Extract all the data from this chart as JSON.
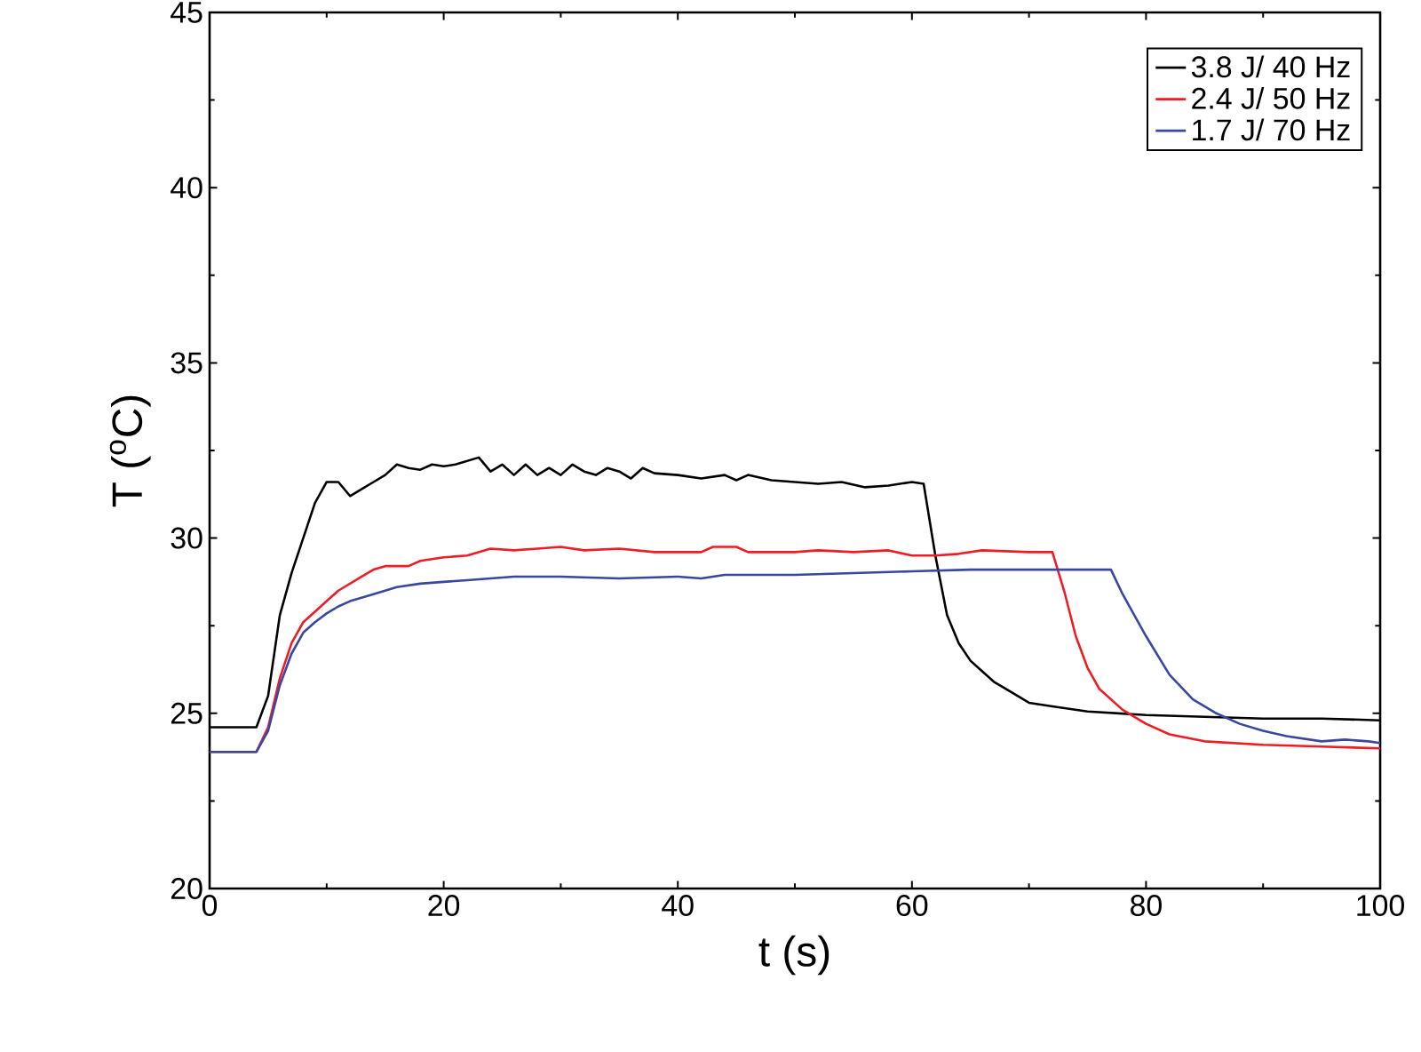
{
  "chart_data": {
    "type": "line",
    "xlabel": "t (s)",
    "ylabel": "T ($^{o}$C)",
    "xlim": [
      0,
      100
    ],
    "ylim": [
      20,
      45
    ],
    "xticks": [
      0,
      20,
      40,
      60,
      80,
      100
    ],
    "yticks": [
      20,
      25,
      30,
      35,
      40,
      45
    ],
    "legend": "top right",
    "grid": false,
    "marker": "none",
    "line_style": "solid",
    "series": [
      {
        "name": "3.8 J/ 40 Hz",
        "color": "#000000",
        "x": [
          0,
          4,
          5,
          6,
          7,
          8,
          9,
          10,
          11,
          12,
          13,
          14,
          15,
          16,
          17,
          18,
          19,
          20,
          21,
          22,
          23,
          24,
          25,
          26,
          27,
          28,
          29,
          30,
          31,
          32,
          33,
          34,
          35,
          36,
          37,
          38,
          40,
          42,
          44,
          45,
          46,
          48,
          50,
          52,
          54,
          56,
          58,
          60,
          61,
          62,
          63,
          64,
          65,
          66,
          67,
          68,
          70,
          72,
          75,
          80,
          85,
          90,
          95,
          100
        ],
        "values": [
          24.6,
          24.6,
          25.5,
          27.8,
          29,
          30,
          31,
          31.6,
          31.6,
          31.2,
          31.4,
          31.6,
          31.8,
          32.1,
          32,
          31.95,
          32.1,
          32.05,
          32.1,
          32.2,
          32.3,
          31.9,
          32.1,
          31.8,
          32.1,
          31.8,
          32,
          31.8,
          32.1,
          31.9,
          31.8,
          32,
          31.9,
          31.7,
          32,
          31.85,
          31.8,
          31.7,
          31.8,
          31.65,
          31.8,
          31.65,
          31.6,
          31.55,
          31.6,
          31.45,
          31.5,
          31.6,
          31.55,
          29.5,
          27.8,
          27,
          26.5,
          26.2,
          25.9,
          25.7,
          25.3,
          25.2,
          25.05,
          24.95,
          24.9,
          24.85,
          24.85,
          24.8
        ]
      },
      {
        "name": "2.4 J/ 50 Hz",
        "color": "#ee1c24",
        "x": [
          0,
          4,
          5,
          6,
          7,
          8,
          9,
          10,
          11,
          12,
          13,
          14,
          15,
          17,
          18,
          20,
          22,
          24,
          26,
          28,
          30,
          32,
          35,
          38,
          40,
          42,
          43,
          45,
          46,
          50,
          52,
          55,
          58,
          60,
          62,
          64,
          66,
          70,
          72,
          73,
          74,
          75,
          76,
          78,
          80,
          82,
          85,
          90,
          95,
          100
        ],
        "values": [
          23.9,
          23.9,
          24.6,
          26,
          27,
          27.6,
          27.9,
          28.2,
          28.5,
          28.7,
          28.9,
          29.1,
          29.2,
          29.2,
          29.35,
          29.45,
          29.5,
          29.7,
          29.65,
          29.7,
          29.75,
          29.65,
          29.7,
          29.6,
          29.6,
          29.6,
          29.75,
          29.75,
          29.6,
          29.6,
          29.65,
          29.6,
          29.65,
          29.5,
          29.5,
          29.55,
          29.65,
          29.6,
          29.6,
          28.5,
          27.2,
          26.3,
          25.7,
          25.1,
          24.7,
          24.4,
          24.2,
          24.1,
          24.05,
          24
        ]
      },
      {
        "name": "1.7 J/ 70 Hz",
        "color": "#3a47a0",
        "x": [
          0,
          4,
          5,
          6,
          7,
          8,
          9,
          10,
          11,
          12,
          14,
          16,
          18,
          20,
          22,
          24,
          26,
          30,
          35,
          40,
          42,
          44,
          50,
          55,
          60,
          65,
          70,
          75,
          77,
          78,
          80,
          82,
          84,
          86,
          88,
          90,
          92,
          95,
          97,
          99,
          100
        ],
        "values": [
          23.9,
          23.9,
          24.5,
          25.8,
          26.7,
          27.3,
          27.6,
          27.85,
          28.05,
          28.2,
          28.4,
          28.6,
          28.7,
          28.75,
          28.8,
          28.85,
          28.9,
          28.9,
          28.85,
          28.9,
          28.85,
          28.95,
          28.95,
          29,
          29.05,
          29.1,
          29.1,
          29.1,
          29.1,
          28.4,
          27.2,
          26.1,
          25.4,
          25,
          24.7,
          24.5,
          24.35,
          24.2,
          24.25,
          24.2,
          24.15
        ]
      }
    ]
  }
}
